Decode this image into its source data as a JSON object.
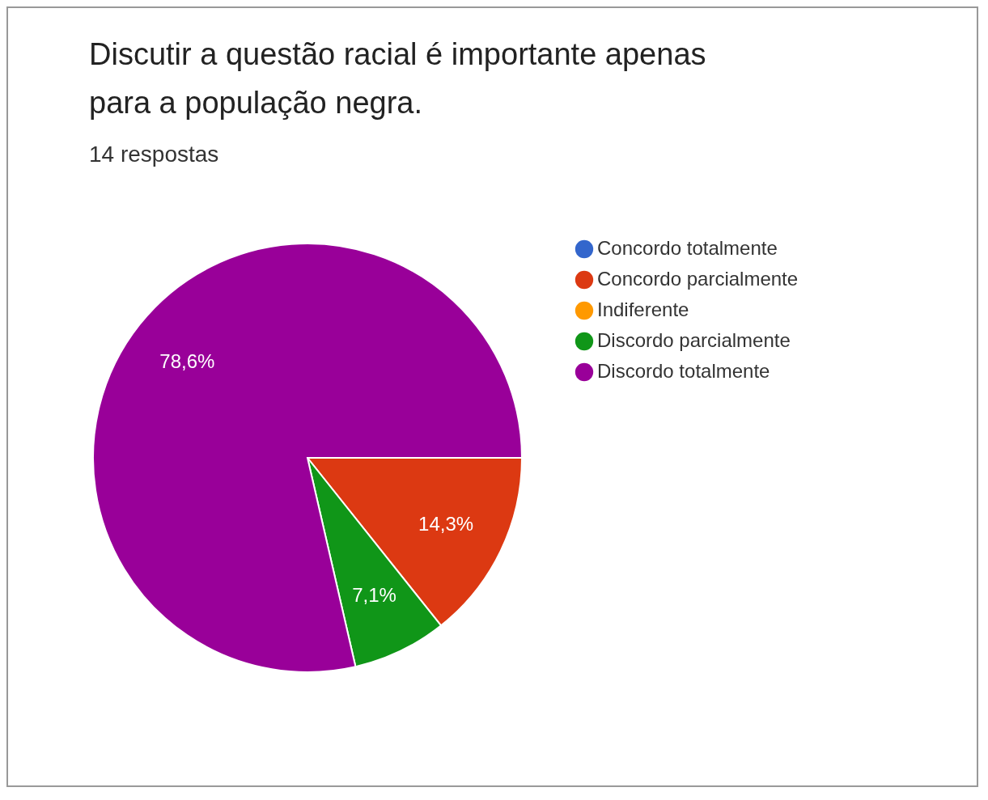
{
  "chart_data": {
    "type": "pie",
    "title": "Discutir a questão racial é importante apenas para a população negra.",
    "subtitle": "14 respostas",
    "categories": [
      "Concordo totalmente",
      "Concordo parcialmente",
      "Indiferente",
      "Discordo parcialmente",
      "Discordo totalmente"
    ],
    "values": [
      0,
      14.3,
      0,
      7.1,
      78.6
    ],
    "colors": [
      "#3366cc",
      "#dc3912",
      "#ff9900",
      "#109618",
      "#990099"
    ],
    "value_labels": [
      null,
      "14,3%",
      null,
      "7,1%",
      "78,6%"
    ],
    "legend": "right"
  }
}
